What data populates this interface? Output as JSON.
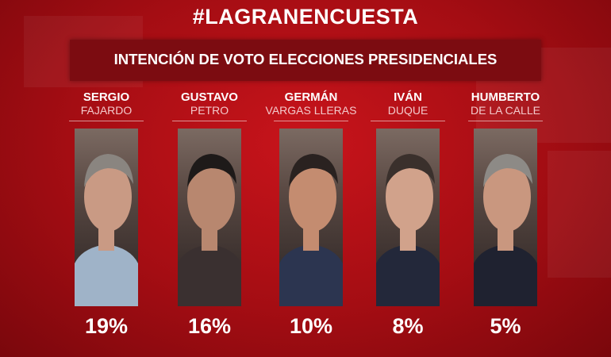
{
  "header": {
    "hashtag": "#LAGRANENCUESTA",
    "subtitle": "INTENCIÓN DE VOTO ELECCIONES PRESIDENCIALES"
  },
  "colors": {
    "background": "#b0101a",
    "subtitle_bar": "#7c0c11",
    "name_accent": "#f3c9cb",
    "text": "#ffffff"
  },
  "chart_data": {
    "type": "bar",
    "title": "INTENCIÓN DE VOTO ELECCIONES PRESIDENCIALES",
    "categories": [
      "SERGIO FAJARDO",
      "GUSTAVO PETRO",
      "GERMÁN VARGAS LLERAS",
      "IVÁN DUQUE",
      "HUMBERTO DE LA CALLE"
    ],
    "values": [
      19,
      16,
      10,
      8,
      5
    ],
    "candidates": [
      {
        "first": "SERGIO",
        "last": "FAJARDO",
        "value": 19,
        "label": "19%"
      },
      {
        "first": "GUSTAVO",
        "last": "PETRO",
        "value": 16,
        "label": "16%"
      },
      {
        "first": "GERMÁN",
        "last": "VARGAS LLERAS",
        "value": 10,
        "label": "10%"
      },
      {
        "first": "IVÁN",
        "last": "DUQUE",
        "value": 8,
        "label": "8%"
      },
      {
        "first": "HUMBERTO",
        "last": "DE LA CALLE",
        "value": 5,
        "label": "5%"
      }
    ]
  }
}
